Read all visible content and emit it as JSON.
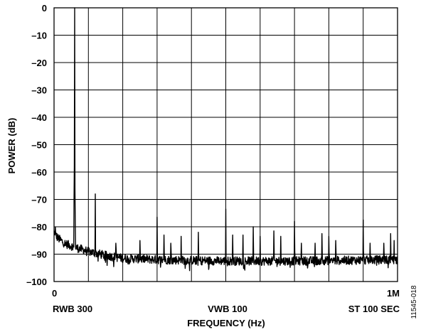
{
  "chart_data": {
    "type": "line",
    "xlabel": "FREQUENCY (Hz)",
    "ylabel": "POWER (dB)",
    "xlim": [
      0,
      1000000
    ],
    "ylim": [
      -100,
      0
    ],
    "x_tick_labels": [
      "0",
      "1M"
    ],
    "y_ticks": [
      0,
      -10,
      -20,
      -30,
      -40,
      -50,
      -60,
      -70,
      -80,
      -90,
      -100
    ],
    "y_tick_labels": [
      "0",
      "–10",
      "–20",
      "–30",
      "–40",
      "–50",
      "–60",
      "–70",
      "–80",
      "–90",
      "–100"
    ],
    "x_gridlines": 10,
    "grid": true,
    "bottom_annotations": [
      "RWB 300",
      "VWB 100",
      "ST 100 SEC"
    ],
    "figure_id": "11545-018",
    "line_color": "#000000",
    "noise_floor_profile": {
      "x": [
        0,
        10000,
        30000,
        60000,
        100000,
        150000,
        200000,
        300000,
        500000,
        700000,
        1000000
      ],
      "y": [
        -82,
        -84,
        -86,
        -87.5,
        -89,
        -90.5,
        -91.5,
        -92,
        -92.5,
        -92.5,
        -92
      ]
    },
    "spurs": {
      "x": [
        3000,
        60000,
        120000,
        180000,
        250000,
        300000,
        320000,
        340000,
        370000,
        420000,
        500000,
        520000,
        550000,
        580000,
        600000,
        640000,
        660000,
        700000,
        720000,
        760000,
        780000,
        800000,
        820000,
        900000,
        920000,
        960000,
        980000,
        990000
      ],
      "y": [
        -83,
        -65,
        -68,
        -86,
        -85,
        -76.5,
        -83,
        -86,
        -83.5,
        -82,
        -73.5,
        -83,
        -83,
        -80,
        -83.5,
        -81.5,
        -83.5,
        -78,
        -86,
        -86,
        -82.5,
        -83.5,
        -85,
        -77.5,
        -86,
        -86,
        -82.5,
        -85
      ]
    },
    "carrier": {
      "x": 60000,
      "y": 0
    }
  }
}
